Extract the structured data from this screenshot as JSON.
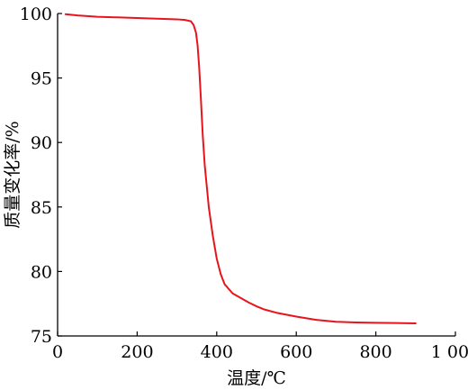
{
  "chart_data": {
    "type": "line",
    "title": "",
    "xlabel": "温度/℃",
    "ylabel": "质量变化率/%",
    "xlim": [
      0,
      1000
    ],
    "ylim": [
      75,
      100
    ],
    "x_ticks": [
      0,
      200,
      400,
      600,
      800,
      1000
    ],
    "x_tick_labels": [
      "0",
      "200",
      "400",
      "600",
      "800",
      "1 000"
    ],
    "y_ticks": [
      75,
      80,
      85,
      90,
      95,
      100
    ],
    "y_tick_labels": [
      "75",
      "80",
      "85",
      "90",
      "95",
      "100"
    ],
    "grid": false,
    "legend": "none",
    "series": [
      {
        "color": "#e8141c",
        "x": [
          20,
          50,
          100,
          150,
          200,
          250,
          300,
          320,
          335,
          342,
          348,
          352,
          356,
          360,
          365,
          370,
          375,
          380,
          390,
          400,
          410,
          420,
          440,
          460,
          480,
          500,
          520,
          550,
          600,
          650,
          700,
          750,
          800,
          850,
          900
        ],
        "y": [
          99.95,
          99.85,
          99.75,
          99.7,
          99.65,
          99.6,
          99.55,
          99.5,
          99.4,
          99.1,
          98.5,
          97.5,
          95.8,
          93.5,
          90.5,
          88.2,
          86.6,
          85.0,
          82.8,
          81.0,
          79.8,
          79.0,
          78.3,
          77.95,
          77.6,
          77.3,
          77.05,
          76.8,
          76.5,
          76.25,
          76.1,
          76.05,
          76.02,
          76.0,
          75.98
        ]
      }
    ]
  }
}
